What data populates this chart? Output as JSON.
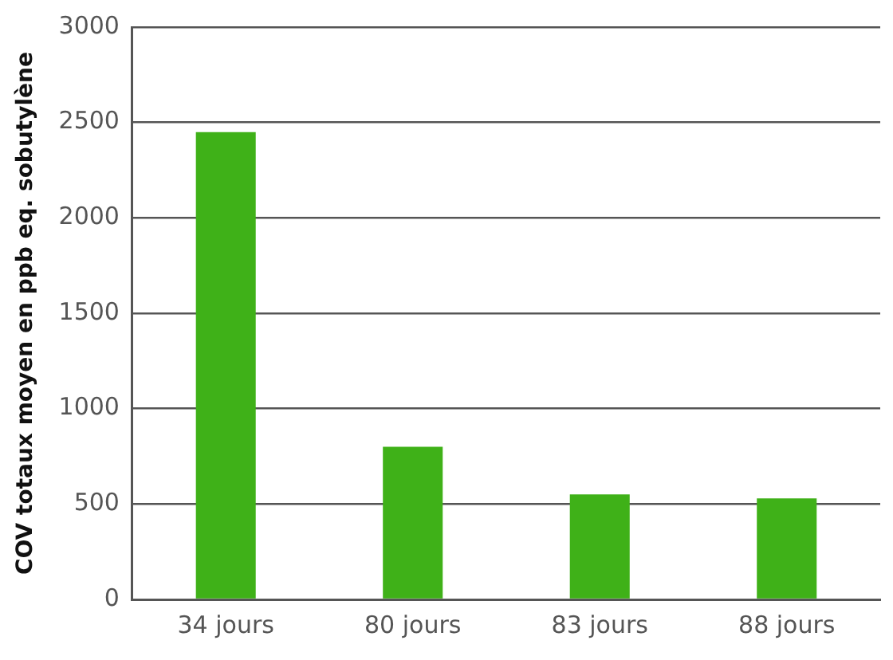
{
  "chart_data": {
    "type": "bar",
    "ylabel": "COV totaux moyen en ppb eq. sobutylène",
    "categories": [
      "34 jours",
      "80 jours",
      "83 jours",
      "88 jours"
    ],
    "values": [
      2450,
      800,
      550,
      530
    ],
    "color": "#3fb118",
    "ylim": [
      0,
      3000
    ],
    "yticks": [
      0,
      500,
      1000,
      1500,
      2000,
      2500,
      3000
    ],
    "grid": "y",
    "legend": false
  }
}
